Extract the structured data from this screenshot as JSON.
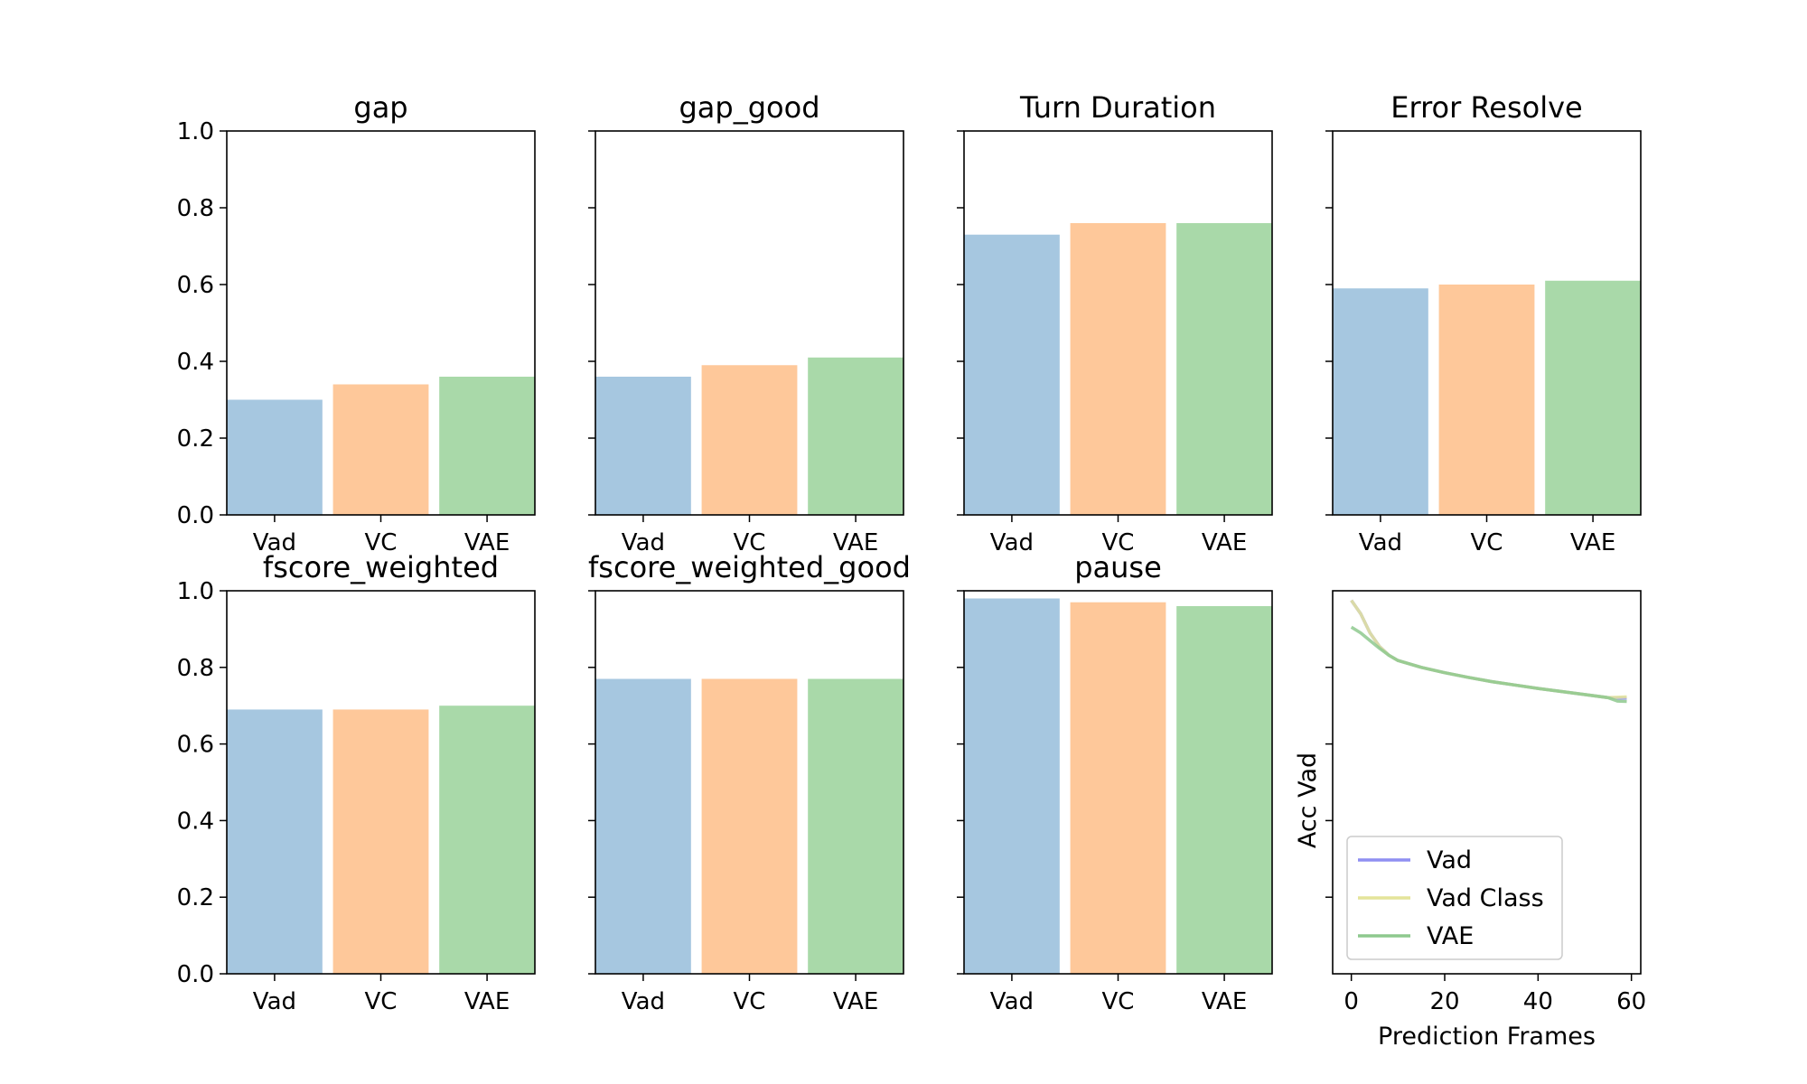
{
  "figure": {
    "background": "#ffffff"
  },
  "colors": {
    "Vad": "#a6c7e0",
    "VC": "#fec89a",
    "VAE": "#a9d9a9"
  },
  "chart_data": [
    {
      "type": "bar",
      "title": "gap",
      "categories": [
        "Vad",
        "VC",
        "VAE"
      ],
      "values": [
        0.3,
        0.34,
        0.36
      ],
      "ylim": [
        0,
        1
      ],
      "yticks": [
        "0.0",
        "0.2",
        "0.4",
        "0.6",
        "0.8",
        "1.0"
      ]
    },
    {
      "type": "bar",
      "title": "gap_good",
      "categories": [
        "Vad",
        "VC",
        "VAE"
      ],
      "values": [
        0.36,
        0.39,
        0.41
      ],
      "ylim": [
        0,
        1
      ]
    },
    {
      "type": "bar",
      "title": "Turn Duration",
      "categories": [
        "Vad",
        "VC",
        "VAE"
      ],
      "values": [
        0.73,
        0.76,
        0.76
      ],
      "ylim": [
        0,
        1
      ]
    },
    {
      "type": "bar",
      "title": "Error Resolve",
      "categories": [
        "Vad",
        "VC",
        "VAE"
      ],
      "values": [
        0.59,
        0.6,
        0.61
      ],
      "ylim": [
        0,
        1
      ]
    },
    {
      "type": "bar",
      "title": "fscore_weighted",
      "categories": [
        "Vad",
        "VC",
        "VAE"
      ],
      "values": [
        0.69,
        0.69,
        0.7
      ],
      "ylim": [
        0,
        1
      ],
      "yticks": [
        "0.0",
        "0.2",
        "0.4",
        "0.6",
        "0.8",
        "1.0"
      ]
    },
    {
      "type": "bar",
      "title": "fscore_weighted_good",
      "categories": [
        "Vad",
        "VC",
        "VAE"
      ],
      "values": [
        0.77,
        0.77,
        0.77
      ],
      "ylim": [
        0,
        1
      ]
    },
    {
      "type": "bar",
      "title": "pause",
      "categories": [
        "Vad",
        "VC",
        "VAE"
      ],
      "values": [
        0.98,
        0.97,
        0.96
      ],
      "ylim": [
        0,
        1
      ]
    },
    {
      "type": "line",
      "title": "",
      "xlabel": "Prediction Frames",
      "ylabel": "Acc Vad",
      "xlim": [
        -4,
        62
      ],
      "ylim": [
        0,
        1
      ],
      "xticks": [
        "0",
        "20",
        "40",
        "60"
      ],
      "legend": "lower-left",
      "series": [
        {
          "name": "Vad",
          "color": "#8f8ff2",
          "x": [
            0,
            2,
            4,
            6,
            8,
            10,
            15,
            20,
            25,
            30,
            35,
            40,
            45,
            50,
            55,
            57,
            59
          ],
          "y": [
            0.975,
            0.94,
            0.89,
            0.855,
            0.832,
            0.818,
            0.8,
            0.786,
            0.774,
            0.763,
            0.754,
            0.745,
            0.737,
            0.729,
            0.721,
            0.72,
            0.72
          ]
        },
        {
          "name": "Vad Class",
          "color": "#e4e49a",
          "x": [
            0,
            2,
            4,
            6,
            8,
            10,
            15,
            20,
            25,
            30,
            35,
            40,
            45,
            50,
            55,
            57,
            59
          ],
          "y": [
            0.975,
            0.94,
            0.89,
            0.855,
            0.832,
            0.818,
            0.8,
            0.786,
            0.774,
            0.763,
            0.754,
            0.745,
            0.737,
            0.729,
            0.721,
            0.722,
            0.723
          ]
        },
        {
          "name": "VAE",
          "color": "#8ec98e",
          "x": [
            0,
            2,
            4,
            6,
            8,
            10,
            15,
            20,
            25,
            30,
            35,
            40,
            45,
            50,
            55,
            57,
            59
          ],
          "y": [
            0.905,
            0.89,
            0.87,
            0.85,
            0.832,
            0.818,
            0.8,
            0.786,
            0.774,
            0.763,
            0.754,
            0.745,
            0.737,
            0.729,
            0.721,
            0.712,
            0.711
          ]
        }
      ]
    }
  ]
}
